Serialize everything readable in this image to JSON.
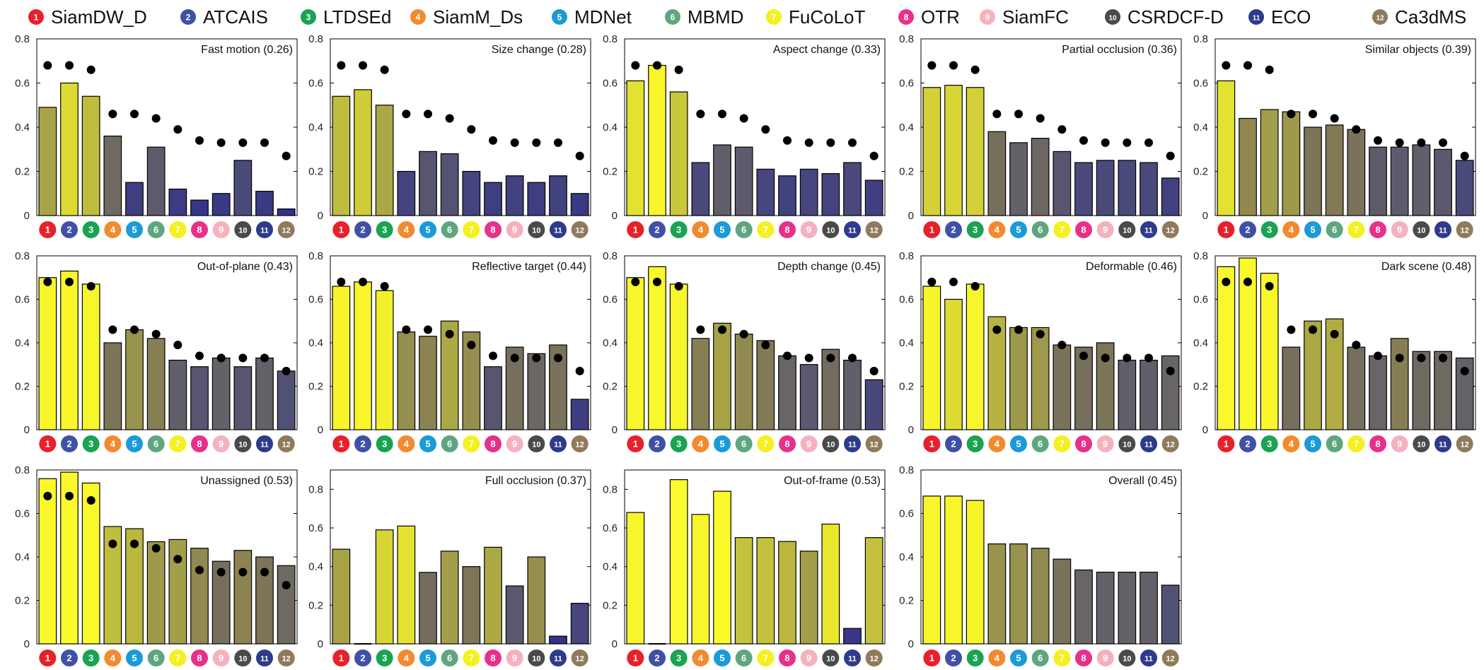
{
  "trackers": [
    {
      "id": "1",
      "name": "SiamDW_D",
      "color": "#e8202a"
    },
    {
      "id": "2",
      "name": "ATCAIS",
      "color": "#3f51a6"
    },
    {
      "id": "3",
      "name": "LTDSEd",
      "color": "#1aa352"
    },
    {
      "id": "4",
      "name": "SiamM_Ds",
      "color": "#f28a30"
    },
    {
      "id": "5",
      "name": "MDNet",
      "color": "#1b9ad8"
    },
    {
      "id": "6",
      "name": "MBMD",
      "color": "#5fa680"
    },
    {
      "id": "7",
      "name": "FuCoLoT",
      "color": "#f5f020"
    },
    {
      "id": "8",
      "name": "OTR",
      "color": "#e8308a"
    },
    {
      "id": "9",
      "name": "SiamFC",
      "color": "#f4b2bf"
    },
    {
      "id": "10",
      "name": "CSRDCF-D",
      "color": "#4a4a4a"
    },
    {
      "id": "11",
      "name": "ECO",
      "color": "#2e3a8c"
    },
    {
      "id": "12",
      "name": "Ca3dMS",
      "color": "#8f7a5c"
    }
  ],
  "axis_ticks": [
    "0",
    "0.2",
    "0.4",
    "0.6",
    "0.8"
  ],
  "chart_data": [
    {
      "type": "bar",
      "title": "Fast motion (0.26)",
      "ylim": [
        0,
        0.8
      ],
      "values": [
        0.49,
        0.6,
        0.54,
        0.36,
        0.15,
        0.31,
        0.12,
        0.07,
        0.1,
        0.25,
        0.11,
        0.03
      ],
      "dots": [
        0.68,
        0.68,
        0.66,
        0.46,
        0.46,
        0.44,
        0.39,
        0.34,
        0.33,
        0.33,
        0.33,
        0.27
      ]
    },
    {
      "type": "bar",
      "title": "Size change (0.28)",
      "ylim": [
        0,
        0.8
      ],
      "values": [
        0.54,
        0.57,
        0.5,
        0.2,
        0.29,
        0.28,
        0.2,
        0.15,
        0.18,
        0.15,
        0.18,
        0.1
      ],
      "dots": [
        0.68,
        0.68,
        0.66,
        0.46,
        0.46,
        0.44,
        0.39,
        0.34,
        0.33,
        0.33,
        0.33,
        0.27
      ]
    },
    {
      "type": "bar",
      "title": "Aspect change (0.33)",
      "ylim": [
        0,
        0.8
      ],
      "values": [
        0.61,
        0.68,
        0.56,
        0.24,
        0.32,
        0.31,
        0.21,
        0.18,
        0.21,
        0.19,
        0.24,
        0.16
      ],
      "dots": [
        0.68,
        0.68,
        0.66,
        0.46,
        0.46,
        0.44,
        0.39,
        0.34,
        0.33,
        0.33,
        0.33,
        0.27
      ]
    },
    {
      "type": "bar",
      "title": "Partial occlusion (0.36)",
      "ylim": [
        0,
        0.8
      ],
      "values": [
        0.58,
        0.59,
        0.58,
        0.38,
        0.33,
        0.35,
        0.29,
        0.24,
        0.25,
        0.25,
        0.24,
        0.17
      ],
      "dots": [
        0.68,
        0.68,
        0.66,
        0.46,
        0.46,
        0.44,
        0.39,
        0.34,
        0.33,
        0.33,
        0.33,
        0.27
      ]
    },
    {
      "type": "bar",
      "title": "Similar objects (0.39)",
      "ylim": [
        0,
        0.8
      ],
      "values": [
        0.61,
        0.44,
        0.48,
        0.47,
        0.4,
        0.41,
        0.39,
        0.31,
        0.31,
        0.32,
        0.3,
        0.25
      ],
      "dots": [
        0.68,
        0.68,
        0.66,
        0.46,
        0.46,
        0.44,
        0.39,
        0.34,
        0.33,
        0.33,
        0.33,
        0.27
      ]
    },
    {
      "type": "bar",
      "title": "Out-of-plane (0.43)",
      "ylim": [
        0,
        0.8
      ],
      "values": [
        0.7,
        0.73,
        0.67,
        0.4,
        0.46,
        0.42,
        0.32,
        0.29,
        0.33,
        0.29,
        0.33,
        0.27
      ],
      "dots": [
        0.68,
        0.68,
        0.66,
        0.46,
        0.46,
        0.44,
        0.39,
        0.34,
        0.33,
        0.33,
        0.33,
        0.27
      ]
    },
    {
      "type": "bar",
      "title": "Reflective target (0.44)",
      "ylim": [
        0,
        0.8
      ],
      "values": [
        0.66,
        0.68,
        0.64,
        0.45,
        0.43,
        0.5,
        0.45,
        0.29,
        0.38,
        0.35,
        0.39,
        0.14
      ],
      "dots": [
        0.68,
        0.68,
        0.66,
        0.46,
        0.46,
        0.44,
        0.39,
        0.34,
        0.33,
        0.33,
        0.33,
        0.27
      ]
    },
    {
      "type": "bar",
      "title": "Depth change (0.45)",
      "ylim": [
        0,
        0.8
      ],
      "values": [
        0.7,
        0.75,
        0.67,
        0.42,
        0.49,
        0.44,
        0.41,
        0.34,
        0.3,
        0.37,
        0.32,
        0.23
      ],
      "dots": [
        0.68,
        0.68,
        0.66,
        0.46,
        0.46,
        0.44,
        0.39,
        0.34,
        0.33,
        0.33,
        0.33,
        0.27
      ]
    },
    {
      "type": "bar",
      "title": "Deformable (0.46)",
      "ylim": [
        0,
        0.8
      ],
      "values": [
        0.66,
        0.6,
        0.67,
        0.52,
        0.47,
        0.47,
        0.39,
        0.38,
        0.4,
        0.32,
        0.32,
        0.34
      ],
      "dots": [
        0.68,
        0.68,
        0.66,
        0.46,
        0.46,
        0.44,
        0.39,
        0.34,
        0.33,
        0.33,
        0.33,
        0.27
      ]
    },
    {
      "type": "bar",
      "title": "Dark scene (0.48)",
      "ylim": [
        0,
        0.8
      ],
      "values": [
        0.75,
        0.79,
        0.72,
        0.38,
        0.5,
        0.51,
        0.38,
        0.34,
        0.42,
        0.36,
        0.36,
        0.33
      ],
      "dots": [
        0.68,
        0.68,
        0.66,
        0.46,
        0.46,
        0.44,
        0.39,
        0.34,
        0.33,
        0.33,
        0.33,
        0.27
      ]
    },
    {
      "type": "bar",
      "title": "Unassigned (0.53)",
      "ylim": [
        0,
        0.8
      ],
      "values": [
        0.76,
        0.79,
        0.74,
        0.54,
        0.53,
        0.47,
        0.48,
        0.44,
        0.38,
        0.43,
        0.4,
        0.36
      ],
      "dots": [
        0.68,
        0.68,
        0.66,
        0.46,
        0.46,
        0.44,
        0.39,
        0.34,
        0.33,
        0.33,
        0.33,
        0.27
      ]
    },
    {
      "type": "bar",
      "title": "Full occlusion (0.37)",
      "ylim": [
        0,
        0.9
      ],
      "values": [
        0.49,
        0.0,
        0.59,
        0.61,
        0.37,
        0.48,
        0.4,
        0.5,
        0.3,
        0.45,
        0.04,
        0.21
      ],
      "dots": null
    },
    {
      "type": "bar",
      "title": "Out-of-frame (0.53)",
      "ylim": [
        0,
        0.9
      ],
      "values": [
        0.68,
        0.0,
        0.85,
        0.67,
        0.79,
        0.55,
        0.55,
        0.53,
        0.48,
        0.62,
        0.08,
        0.55
      ],
      "dots": null
    },
    {
      "type": "bar",
      "title": "Overall (0.45)",
      "ylim": [
        0,
        0.8
      ],
      "values": [
        0.68,
        0.68,
        0.66,
        0.46,
        0.46,
        0.44,
        0.39,
        0.34,
        0.33,
        0.33,
        0.33,
        0.27
      ],
      "dots": null
    }
  ]
}
